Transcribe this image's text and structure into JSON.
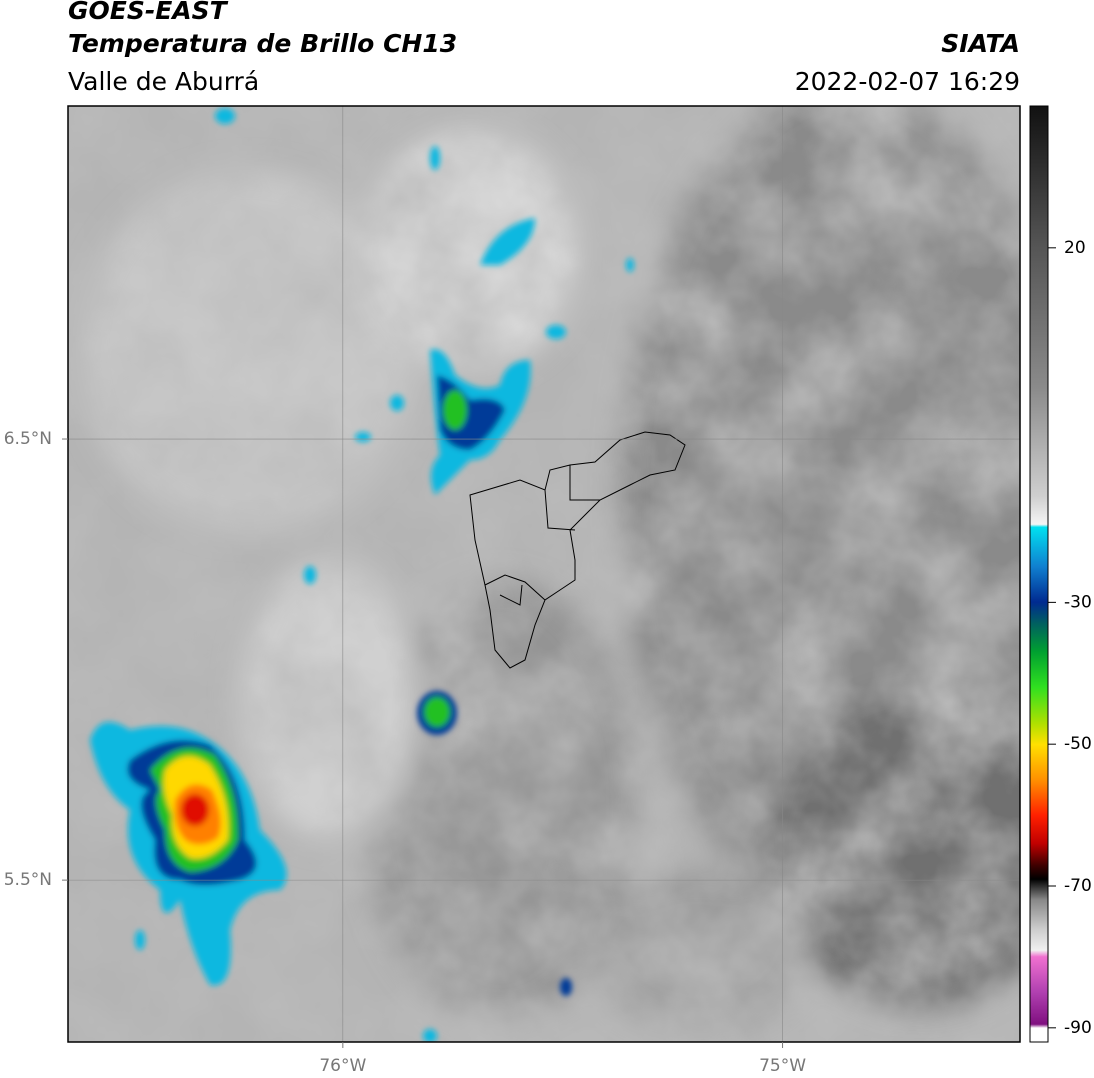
{
  "header": {
    "product": "GOES-EAST",
    "title": "Temperatura de Brillo CH13",
    "subtitle": "Valle de Aburrá",
    "source": "SIATA",
    "datetime": "2022-02-07 16:29"
  },
  "map": {
    "xlim": [
      -76.625,
      -74.46
    ],
    "ylim": [
      5.133,
      7.255
    ],
    "xticks": [
      {
        "value": -76,
        "label": "76°W"
      },
      {
        "value": -75,
        "label": "75°W"
      }
    ],
    "yticks": [
      {
        "value": 6.5,
        "label": "6.5°N"
      },
      {
        "value": 5.5,
        "label": "5.5°N"
      }
    ],
    "grid": true
  },
  "colorbar": {
    "lim": [
      -92,
      40
    ],
    "ticks": [
      20,
      -30,
      -50,
      -70,
      -90
    ]
  }
}
